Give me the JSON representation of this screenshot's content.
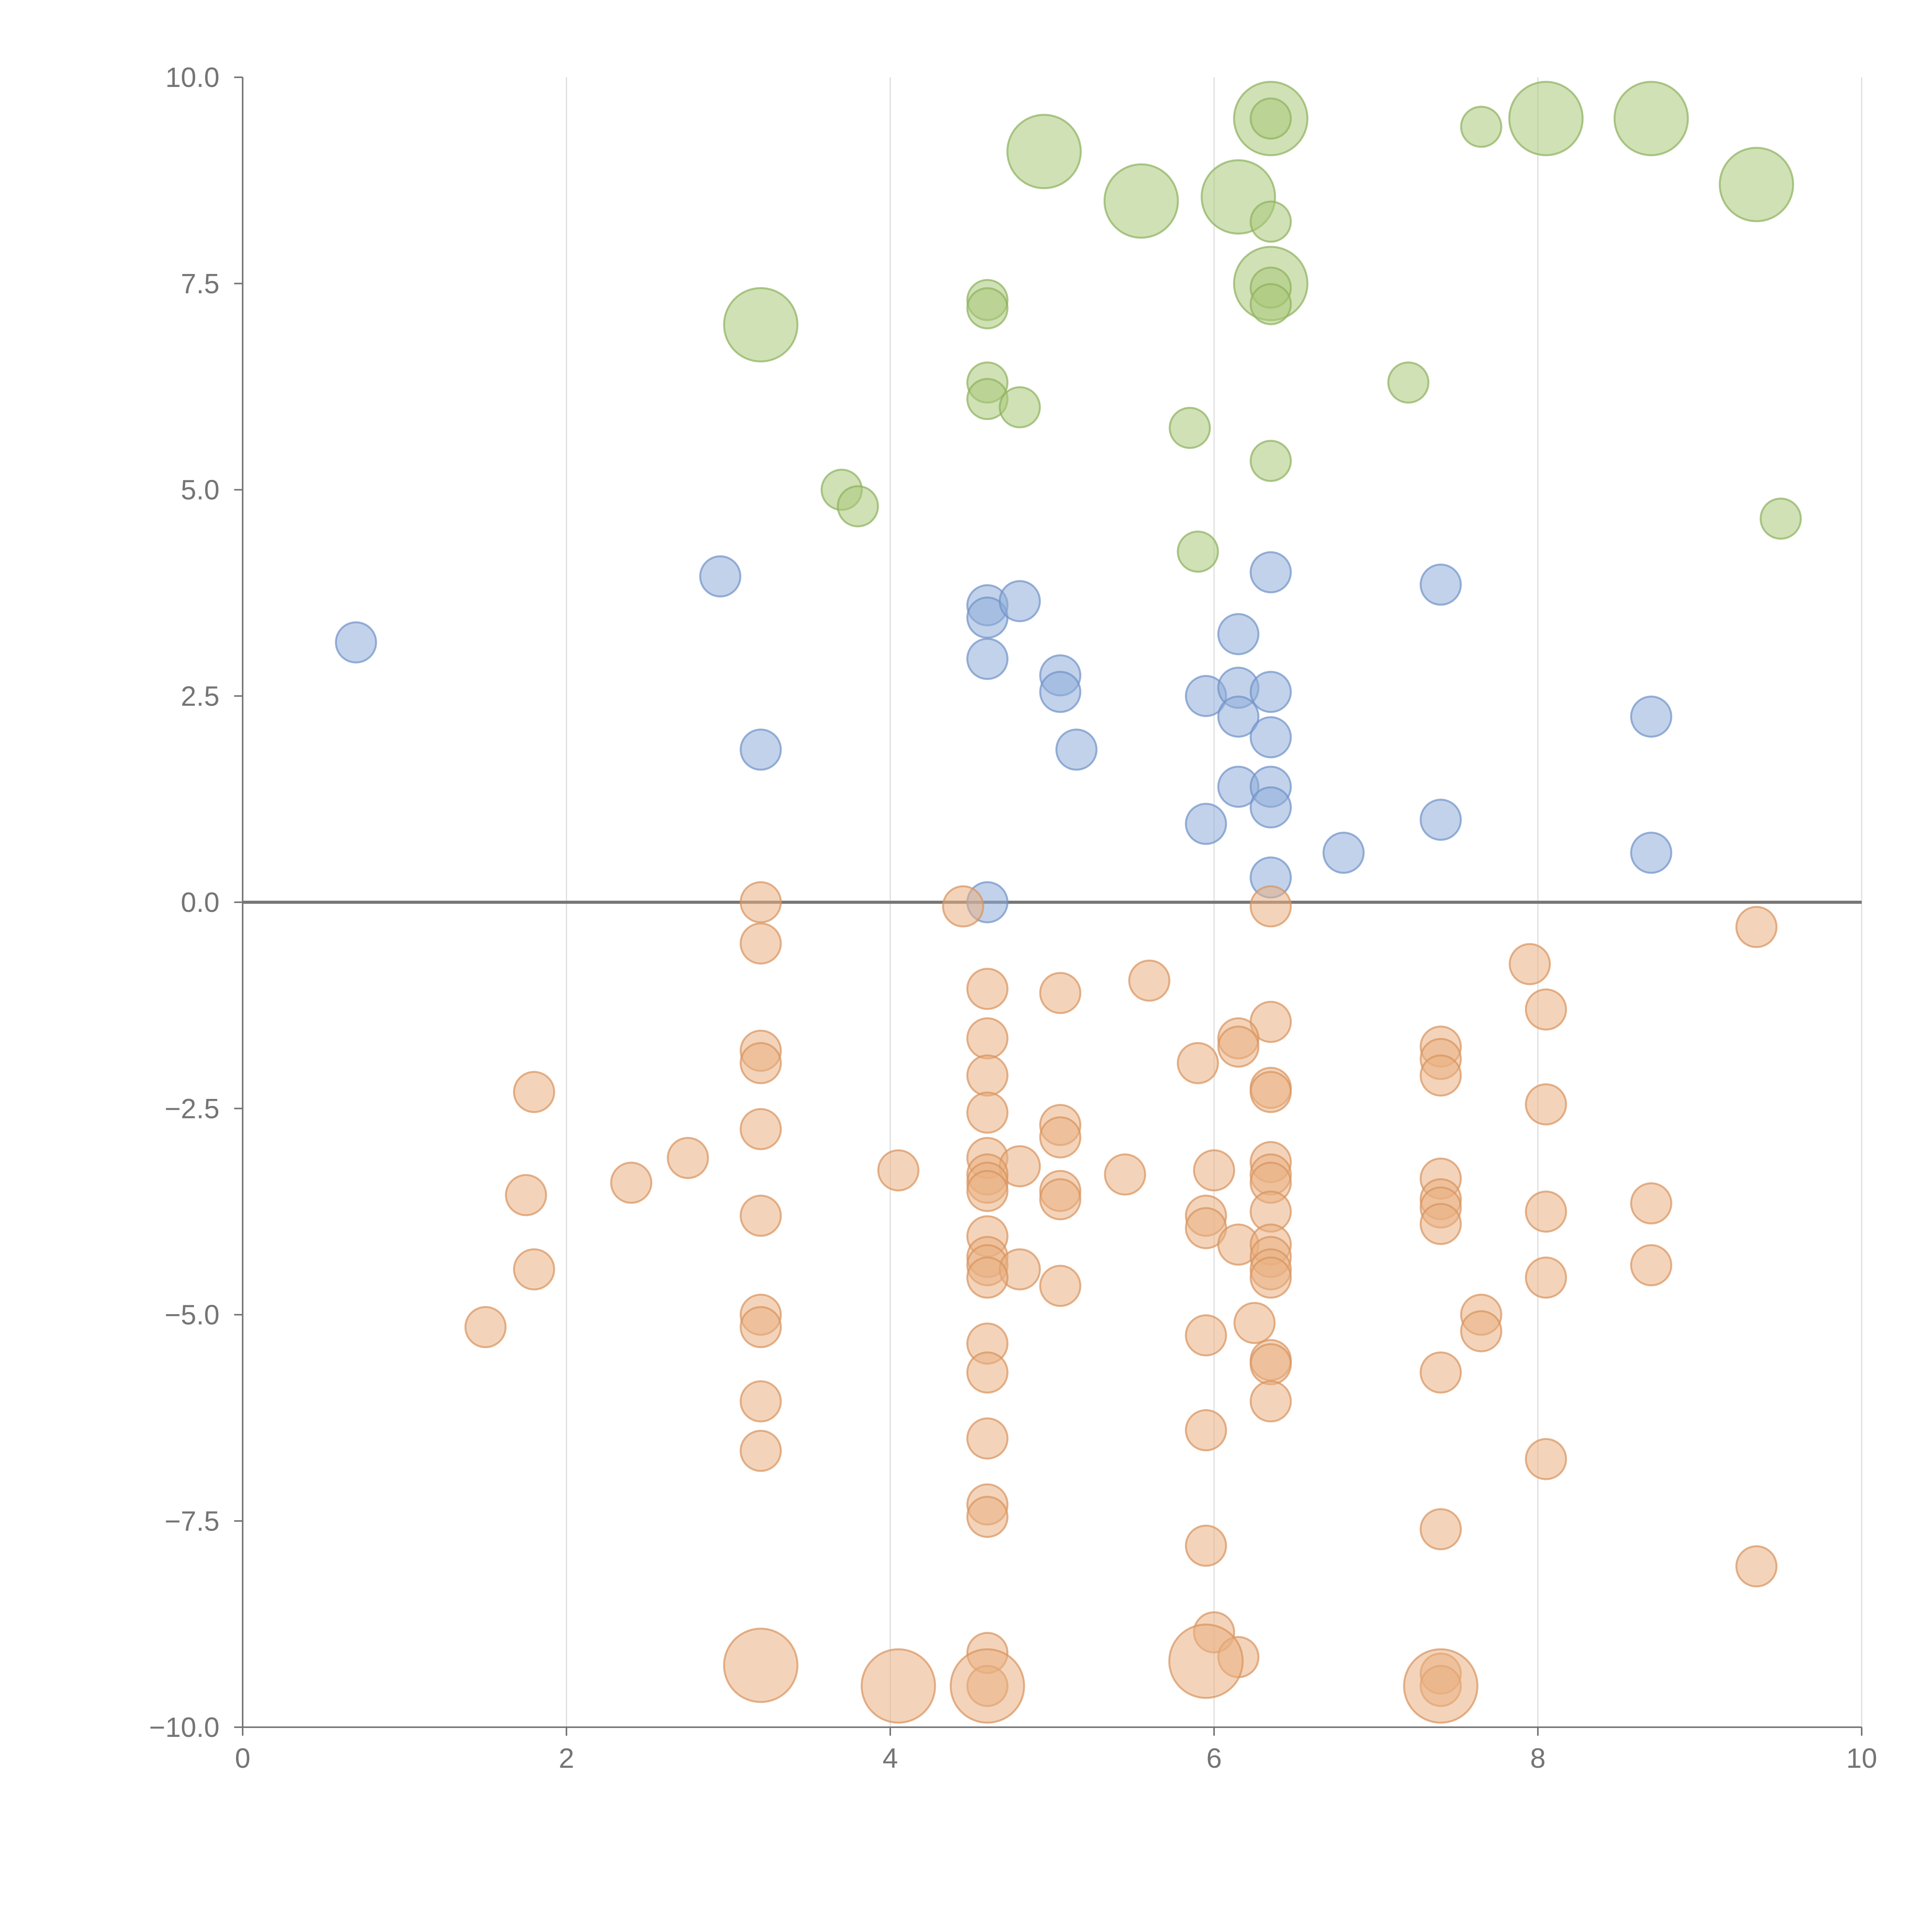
{
  "chart_data": {
    "type": "scatter",
    "title": "",
    "xlabel": "",
    "ylabel": "",
    "xlim": [
      0,
      10
    ],
    "ylim": [
      -10,
      10
    ],
    "grid": "vertical",
    "legend": "none",
    "x_ticks": [
      0,
      2,
      4,
      6,
      8,
      10
    ],
    "x_tick_labels": [
      "0",
      "2",
      "4",
      "6",
      "8",
      "10"
    ],
    "y_ticks": [
      10,
      7.5,
      5,
      2.5,
      0,
      -2.5,
      -5,
      -7.5,
      -10
    ],
    "y_tick_labels": [
      "10.0",
      "7.5",
      "5.0",
      "2.5",
      "0.0",
      "−2.5",
      "−5.0",
      "−7.5",
      "−10.0"
    ],
    "reference_line_y": 0,
    "series": [
      {
        "name": "green",
        "color": "#a9c97a",
        "stroke": "#8db05c",
        "points": [
          {
            "x": 6.35,
            "y": 9.5,
            "size": 3
          },
          {
            "x": 6.35,
            "y": 9.5,
            "size": 1
          },
          {
            "x": 7.65,
            "y": 9.4,
            "size": 1
          },
          {
            "x": 8.05,
            "y": 9.5,
            "size": 3
          },
          {
            "x": 8.7,
            "y": 9.5,
            "size": 3
          },
          {
            "x": 4.95,
            "y": 9.1,
            "size": 3
          },
          {
            "x": 5.55,
            "y": 8.5,
            "size": 3
          },
          {
            "x": 6.15,
            "y": 8.55,
            "size": 3
          },
          {
            "x": 6.35,
            "y": 8.25,
            "size": 1
          },
          {
            "x": 9.35,
            "y": 8.7,
            "size": 3
          },
          {
            "x": 6.35,
            "y": 7.5,
            "size": 3
          },
          {
            "x": 6.35,
            "y": 7.45,
            "size": 1
          },
          {
            "x": 6.35,
            "y": 7.25,
            "size": 1
          },
          {
            "x": 3.2,
            "y": 7.0,
            "size": 3
          },
          {
            "x": 4.6,
            "y": 7.3,
            "size": 1
          },
          {
            "x": 4.6,
            "y": 7.2,
            "size": 1
          },
          {
            "x": 4.6,
            "y": 6.3,
            "size": 1
          },
          {
            "x": 4.6,
            "y": 6.1,
            "size": 1
          },
          {
            "x": 4.8,
            "y": 6.0,
            "size": 1
          },
          {
            "x": 7.2,
            "y": 6.3,
            "size": 1
          },
          {
            "x": 5.85,
            "y": 5.75,
            "size": 1
          },
          {
            "x": 6.35,
            "y": 5.35,
            "size": 1
          },
          {
            "x": 3.7,
            "y": 5.0,
            "size": 1
          },
          {
            "x": 3.8,
            "y": 4.8,
            "size": 1
          },
          {
            "x": 9.5,
            "y": 4.65,
            "size": 1
          },
          {
            "x": 5.9,
            "y": 4.25,
            "size": 1
          }
        ]
      },
      {
        "name": "blue",
        "color": "#8fadd8",
        "stroke": "#6f92c7",
        "points": [
          {
            "x": 0.7,
            "y": 3.15,
            "size": 1
          },
          {
            "x": 2.95,
            "y": 3.95,
            "size": 1
          },
          {
            "x": 4.6,
            "y": 3.6,
            "size": 1
          },
          {
            "x": 4.6,
            "y": 3.45,
            "size": 1
          },
          {
            "x": 4.8,
            "y": 3.65,
            "size": 1
          },
          {
            "x": 6.35,
            "y": 4.0,
            "size": 1
          },
          {
            "x": 7.4,
            "y": 3.85,
            "size": 1
          },
          {
            "x": 6.15,
            "y": 3.25,
            "size": 1
          },
          {
            "x": 4.6,
            "y": 2.95,
            "size": 1
          },
          {
            "x": 5.05,
            "y": 2.75,
            "size": 1
          },
          {
            "x": 5.05,
            "y": 2.55,
            "size": 1
          },
          {
            "x": 5.95,
            "y": 2.5,
            "size": 1
          },
          {
            "x": 6.15,
            "y": 2.6,
            "size": 1
          },
          {
            "x": 6.35,
            "y": 2.55,
            "size": 1
          },
          {
            "x": 6.15,
            "y": 2.25,
            "size": 1
          },
          {
            "x": 6.35,
            "y": 2.0,
            "size": 1
          },
          {
            "x": 8.7,
            "y": 2.25,
            "size": 1
          },
          {
            "x": 3.2,
            "y": 1.85,
            "size": 1
          },
          {
            "x": 5.15,
            "y": 1.85,
            "size": 1
          },
          {
            "x": 6.15,
            "y": 1.4,
            "size": 1
          },
          {
            "x": 6.35,
            "y": 1.4,
            "size": 1
          },
          {
            "x": 6.35,
            "y": 1.15,
            "size": 1
          },
          {
            "x": 5.95,
            "y": 0.95,
            "size": 1
          },
          {
            "x": 7.4,
            "y": 1.0,
            "size": 1
          },
          {
            "x": 6.8,
            "y": 0.6,
            "size": 1
          },
          {
            "x": 8.7,
            "y": 0.6,
            "size": 1
          },
          {
            "x": 6.35,
            "y": 0.3,
            "size": 1
          },
          {
            "x": 4.6,
            "y": 0.0,
            "size": 1
          }
        ]
      },
      {
        "name": "orange",
        "color": "#eab184",
        "stroke": "#d9935d",
        "points": [
          {
            "x": 3.2,
            "y": 0.0,
            "size": 1
          },
          {
            "x": 4.45,
            "y": -0.05,
            "size": 1
          },
          {
            "x": 6.35,
            "y": -0.05,
            "size": 1
          },
          {
            "x": 3.2,
            "y": -0.5,
            "size": 1
          },
          {
            "x": 9.35,
            "y": -0.3,
            "size": 1
          },
          {
            "x": 7.95,
            "y": -0.75,
            "size": 1
          },
          {
            "x": 5.6,
            "y": -0.95,
            "size": 1
          },
          {
            "x": 4.6,
            "y": -1.05,
            "size": 1
          },
          {
            "x": 5.05,
            "y": -1.1,
            "size": 1
          },
          {
            "x": 8.05,
            "y": -1.3,
            "size": 1
          },
          {
            "x": 6.35,
            "y": -1.45,
            "size": 1
          },
          {
            "x": 4.6,
            "y": -1.65,
            "size": 1
          },
          {
            "x": 6.15,
            "y": -1.65,
            "size": 1
          },
          {
            "x": 6.15,
            "y": -1.75,
            "size": 1
          },
          {
            "x": 3.2,
            "y": -1.8,
            "size": 1
          },
          {
            "x": 7.4,
            "y": -1.75,
            "size": 1
          },
          {
            "x": 7.4,
            "y": -1.9,
            "size": 1
          },
          {
            "x": 3.2,
            "y": -1.95,
            "size": 1
          },
          {
            "x": 5.9,
            "y": -1.95,
            "size": 1
          },
          {
            "x": 4.6,
            "y": -2.1,
            "size": 1
          },
          {
            "x": 7.4,
            "y": -2.1,
            "size": 1
          },
          {
            "x": 1.8,
            "y": -2.3,
            "size": 1
          },
          {
            "x": 6.35,
            "y": -2.25,
            "size": 1
          },
          {
            "x": 6.35,
            "y": -2.3,
            "size": 1
          },
          {
            "x": 8.05,
            "y": -2.45,
            "size": 1
          },
          {
            "x": 4.6,
            "y": -2.55,
            "size": 1
          },
          {
            "x": 3.2,
            "y": -2.75,
            "size": 1
          },
          {
            "x": 5.05,
            "y": -2.7,
            "size": 1
          },
          {
            "x": 5.05,
            "y": -2.85,
            "size": 1
          },
          {
            "x": 2.75,
            "y": -3.1,
            "size": 1
          },
          {
            "x": 4.6,
            "y": -3.1,
            "size": 1
          },
          {
            "x": 4.8,
            "y": -3.2,
            "size": 1
          },
          {
            "x": 4.05,
            "y": -3.25,
            "size": 1
          },
          {
            "x": 5.45,
            "y": -3.3,
            "size": 1
          },
          {
            "x": 6.0,
            "y": -3.25,
            "size": 1
          },
          {
            "x": 6.35,
            "y": -3.15,
            "size": 1
          },
          {
            "x": 6.35,
            "y": -3.3,
            "size": 1
          },
          {
            "x": 6.35,
            "y": -3.4,
            "size": 1
          },
          {
            "x": 2.4,
            "y": -3.4,
            "size": 1
          },
          {
            "x": 4.6,
            "y": -3.3,
            "size": 1
          },
          {
            "x": 4.6,
            "y": -3.4,
            "size": 1
          },
          {
            "x": 4.6,
            "y": -3.5,
            "size": 1
          },
          {
            "x": 7.4,
            "y": -3.35,
            "size": 1
          },
          {
            "x": 1.75,
            "y": -3.55,
            "size": 1
          },
          {
            "x": 5.05,
            "y": -3.5,
            "size": 1
          },
          {
            "x": 5.05,
            "y": -3.6,
            "size": 1
          },
          {
            "x": 7.4,
            "y": -3.6,
            "size": 1
          },
          {
            "x": 7.4,
            "y": -3.7,
            "size": 1
          },
          {
            "x": 8.7,
            "y": -3.65,
            "size": 1
          },
          {
            "x": 6.35,
            "y": -3.75,
            "size": 1
          },
          {
            "x": 8.05,
            "y": -3.75,
            "size": 1
          },
          {
            "x": 3.2,
            "y": -3.8,
            "size": 1
          },
          {
            "x": 5.95,
            "y": -3.8,
            "size": 1
          },
          {
            "x": 7.4,
            "y": -3.9,
            "size": 1
          },
          {
            "x": 5.95,
            "y": -3.95,
            "size": 1
          },
          {
            "x": 4.6,
            "y": -4.05,
            "size": 1
          },
          {
            "x": 6.15,
            "y": -4.15,
            "size": 1
          },
          {
            "x": 6.35,
            "y": -4.15,
            "size": 1
          },
          {
            "x": 4.6,
            "y": -4.3,
            "size": 1
          },
          {
            "x": 4.6,
            "y": -4.4,
            "size": 1
          },
          {
            "x": 6.35,
            "y": -4.3,
            "size": 1
          },
          {
            "x": 6.35,
            "y": -4.45,
            "size": 1
          },
          {
            "x": 8.7,
            "y": -4.4,
            "size": 1
          },
          {
            "x": 1.8,
            "y": -4.45,
            "size": 1
          },
          {
            "x": 4.8,
            "y": -4.45,
            "size": 1
          },
          {
            "x": 4.6,
            "y": -4.55,
            "size": 1
          },
          {
            "x": 6.35,
            "y": -4.55,
            "size": 1
          },
          {
            "x": 8.05,
            "y": -4.55,
            "size": 1
          },
          {
            "x": 5.05,
            "y": -4.65,
            "size": 1
          },
          {
            "x": 3.2,
            "y": -5.0,
            "size": 1
          },
          {
            "x": 7.65,
            "y": -5.0,
            "size": 1
          },
          {
            "x": 1.5,
            "y": -5.15,
            "size": 1
          },
          {
            "x": 3.2,
            "y": -5.15,
            "size": 1
          },
          {
            "x": 6.25,
            "y": -5.1,
            "size": 1
          },
          {
            "x": 7.65,
            "y": -5.2,
            "size": 1
          },
          {
            "x": 5.95,
            "y": -5.25,
            "size": 1
          },
          {
            "x": 4.6,
            "y": -5.35,
            "size": 1
          },
          {
            "x": 6.35,
            "y": -5.55,
            "size": 1
          },
          {
            "x": 6.35,
            "y": -5.6,
            "size": 1
          },
          {
            "x": 4.6,
            "y": -5.7,
            "size": 1
          },
          {
            "x": 7.4,
            "y": -5.7,
            "size": 1
          },
          {
            "x": 3.2,
            "y": -6.05,
            "size": 1
          },
          {
            "x": 6.35,
            "y": -6.05,
            "size": 1
          },
          {
            "x": 5.95,
            "y": -6.4,
            "size": 1
          },
          {
            "x": 4.6,
            "y": -6.5,
            "size": 1
          },
          {
            "x": 3.2,
            "y": -6.65,
            "size": 1
          },
          {
            "x": 8.05,
            "y": -6.75,
            "size": 1
          },
          {
            "x": 4.6,
            "y": -7.3,
            "size": 1
          },
          {
            "x": 4.6,
            "y": -7.45,
            "size": 1
          },
          {
            "x": 7.4,
            "y": -7.6,
            "size": 1
          },
          {
            "x": 5.95,
            "y": -7.8,
            "size": 1
          },
          {
            "x": 9.35,
            "y": -8.05,
            "size": 1
          },
          {
            "x": 6.0,
            "y": -8.85,
            "size": 1
          },
          {
            "x": 6.15,
            "y": -9.15,
            "size": 1
          },
          {
            "x": 3.2,
            "y": -9.25,
            "size": 3
          },
          {
            "x": 5.95,
            "y": -9.2,
            "size": 3
          },
          {
            "x": 4.6,
            "y": -9.1,
            "size": 1
          },
          {
            "x": 4.6,
            "y": -9.5,
            "size": 1
          },
          {
            "x": 4.05,
            "y": -9.5,
            "size": 3
          },
          {
            "x": 4.6,
            "y": -9.5,
            "size": 3
          },
          {
            "x": 7.4,
            "y": -9.35,
            "size": 1
          },
          {
            "x": 7.4,
            "y": -9.5,
            "size": 1
          },
          {
            "x": 7.4,
            "y": -9.5,
            "size": 3
          }
        ]
      }
    ]
  }
}
